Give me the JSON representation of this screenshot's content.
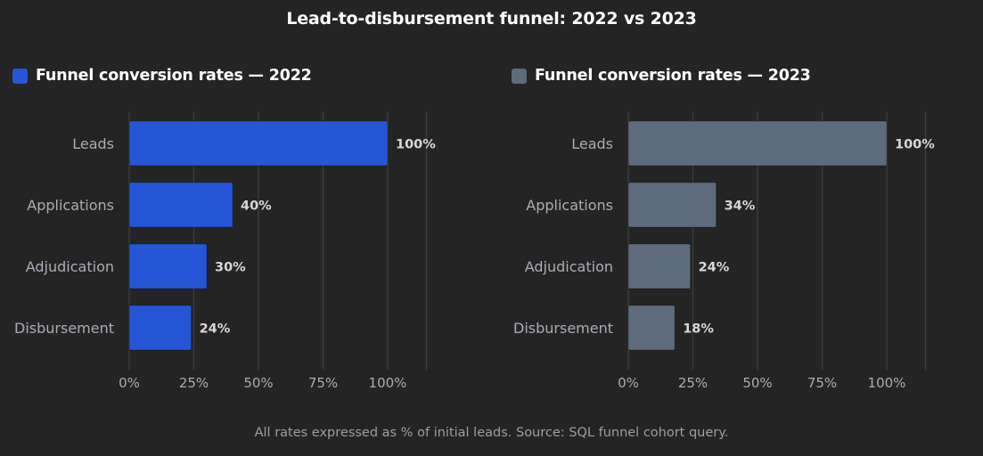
{
  "title": "Lead-to-disbursement funnel: 2022 vs 2023",
  "footnote": "All rates expressed as % of initial leads. Source: SQL funnel cohort query.",
  "colors": {
    "background": "#242424",
    "series_2022": "#2456d6",
    "series_2023": "#5e6a7d",
    "grid": "#3c3c3c"
  },
  "chart_data": [
    {
      "type": "bar",
      "orientation": "horizontal",
      "title": "Funnel conversion rates — 2022",
      "categories": [
        "Leads",
        "Applications",
        "Adjudication",
        "Disbursement"
      ],
      "values": [
        100,
        40,
        30,
        24
      ],
      "value_labels": [
        "100%",
        "40%",
        "30%",
        "24%"
      ],
      "xlim": [
        0,
        115
      ],
      "xticks": [
        0,
        25,
        50,
        75,
        100
      ],
      "xtick_labels": [
        "0%",
        "25%",
        "50%",
        "75%",
        "100%"
      ],
      "grid": "vertical",
      "color": "#2456d6"
    },
    {
      "type": "bar",
      "orientation": "horizontal",
      "title": "Funnel conversion rates — 2023",
      "categories": [
        "Leads",
        "Applications",
        "Adjudication",
        "Disbursement"
      ],
      "values": [
        100,
        34,
        24,
        18
      ],
      "value_labels": [
        "100%",
        "34%",
        "24%",
        "18%"
      ],
      "xlim": [
        0,
        115
      ],
      "xticks": [
        0,
        25,
        50,
        75,
        100
      ],
      "xtick_labels": [
        "0%",
        "25%",
        "50%",
        "75%",
        "100%"
      ],
      "grid": "vertical",
      "color": "#5e6a7d"
    }
  ]
}
